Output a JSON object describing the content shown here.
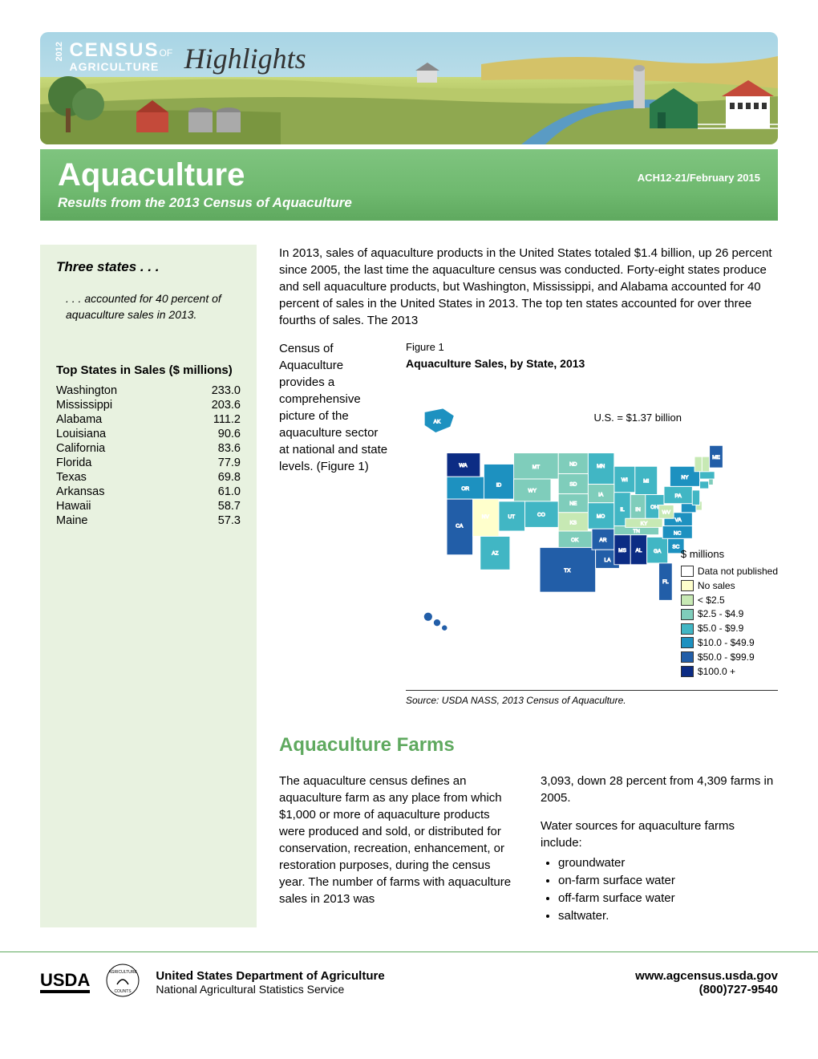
{
  "banner": {
    "year": "2012",
    "line1": "CENSUS",
    "of": "OF",
    "line2": "AGRICULTURE",
    "highlights": "Highlights"
  },
  "titlebar": {
    "title": "Aquaculture",
    "docid": "ACH12-21/February 2015",
    "subtitle": "Results from the 2013 Census of Aquaculture"
  },
  "sidebar": {
    "heading": "Three states . . .",
    "lead": ". . . accounted for 40 percent of aquaculture sales in 2013.",
    "table_title": "Top States in Sales ($ millions)",
    "rows": [
      {
        "state": "Washington",
        "val": "233.0"
      },
      {
        "state": "Mississippi",
        "val": "203.6"
      },
      {
        "state": "Alabama",
        "val": "111.2"
      },
      {
        "state": "Louisiana",
        "val": "90.6"
      },
      {
        "state": "California",
        "val": "83.6"
      },
      {
        "state": "Florida",
        "val": "77.9"
      },
      {
        "state": "Texas",
        "val": "69.8"
      },
      {
        "state": "Arkansas",
        "val": "61.0"
      },
      {
        "state": "Hawaii",
        "val": "58.7"
      },
      {
        "state": "Maine",
        "val": "57.3"
      }
    ]
  },
  "main": {
    "intro_full": "In 2013, sales of aquaculture products in the United States totaled $1.4 billion, up 26 percent since 2005, the last time the aquaculture census was conducted. Forty-eight states produce and sell aquaculture products, but Washington, Mississippi, and Alabama accounted for 40 percent of sales in the United States in 2013. The top ten states accounted for over three fourths of sales. The 2013",
    "intro_left": "Census of Aquaculture provides a comprehensive picture of the aquaculture sector at national and state levels. (Figure 1)",
    "figure": {
      "label": "Figure 1",
      "title": "Aquaculture Sales, by State, 2013",
      "us_total": "U.S. = $1.37 billion",
      "source": "Source: USDA NASS, 2013 Census of Aquaculture.",
      "legend_title": "$ millions",
      "legend": [
        {
          "color": "#ffffff",
          "label": "Data not published"
        },
        {
          "color": "#ffffcc",
          "label": "No sales"
        },
        {
          "color": "#c7e9b4",
          "label": "< $2.5"
        },
        {
          "color": "#7fcdbb",
          "label": "$2.5 - $4.9"
        },
        {
          "color": "#41b6c4",
          "label": "$5.0 - $9.9"
        },
        {
          "color": "#1d91c0",
          "label": "$10.0 - $49.9"
        },
        {
          "color": "#225ea8",
          "label": "$50.0 - $99.9"
        },
        {
          "color": "#0c2c84",
          "label": "$100.0 +"
        }
      ],
      "states": {
        "WA": "#0c2c84",
        "OR": "#1d91c0",
        "CA": "#225ea8",
        "NV": "#ffffcc",
        "ID": "#1d91c0",
        "MT": "#7fcdbb",
        "WY": "#7fcdbb",
        "UT": "#41b6c4",
        "AZ": "#41b6c4",
        "NM": "#ffffff",
        "CO": "#41b6c4",
        "ND": "#7fcdbb",
        "SD": "#7fcdbb",
        "NE": "#7fcdbb",
        "KS": "#c7e9b4",
        "OK": "#7fcdbb",
        "TX": "#225ea8",
        "MN": "#41b6c4",
        "IA": "#7fcdbb",
        "MO": "#41b6c4",
        "AR": "#225ea8",
        "LA": "#225ea8",
        "WI": "#41b6c4",
        "IL": "#41b6c4",
        "MS": "#0c2c84",
        "AL": "#0c2c84",
        "MI": "#41b6c4",
        "IN": "#7fcdbb",
        "OH": "#41b6c4",
        "KY": "#c7e9b4",
        "TN": "#7fcdbb",
        "GA": "#41b6c4",
        "FL": "#225ea8",
        "SC": "#1d91c0",
        "NC": "#1d91c0",
        "VA": "#1d91c0",
        "WV": "#c7e9b4",
        "PA": "#41b6c4",
        "NY": "#1d91c0",
        "ME": "#225ea8",
        "VT": "#c7e9b4",
        "NH": "#c7e9b4",
        "MA": "#41b6c4",
        "RI": "#7fcdbb",
        "CT": "#41b6c4",
        "NJ": "#41b6c4",
        "DE": "#c7e9b4",
        "MD": "#1d91c0",
        "AK": "#1d91c0",
        "HI": "#225ea8"
      }
    },
    "section2_title": "Aquaculture Farms",
    "col1_p1": "The aquaculture census defines an aquaculture farm as any place from which $1,000 or more of aquaculture products were produced and sold, or distributed for conservation, recreation, enhancement, or restoration purposes, during the census year. The number of farms with aquaculture sales in 2013 was",
    "col2_p1": "3,093, down 28 percent from 4,309 farms in 2005.",
    "col2_p2": "Water sources for aquaculture farms include:",
    "water_sources": [
      "groundwater",
      "on-farm surface water",
      "off-farm surface water",
      "saltwater."
    ]
  },
  "footer": {
    "dept": "United States Department of Agriculture",
    "nass": "National Agricultural Statistics Service",
    "url": "www.agcensus.usda.gov",
    "phone": "(800)727-9540",
    "usda": "USDA"
  }
}
